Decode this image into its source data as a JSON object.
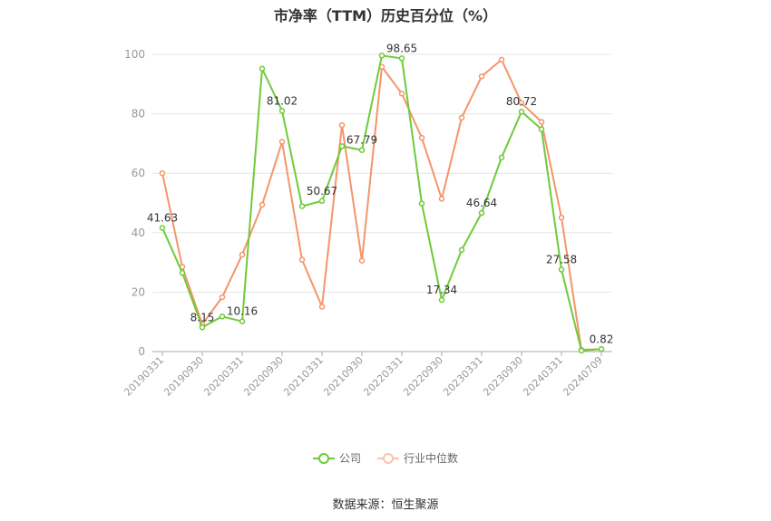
{
  "title": "市净率（TTM）历史百分位（%）",
  "source": "数据来源：恒生聚源",
  "colors": {
    "company": "#6ecb38",
    "industry": "#f4956a",
    "grid": "#e6e6e6",
    "axis": "#999999",
    "label": "#333333"
  },
  "chart_data": {
    "type": "line",
    "title": "市净率（TTM）历史百分位（%）",
    "xlabel": "",
    "ylabel": "",
    "ylim": [
      0,
      100
    ],
    "yticks": [
      0,
      20,
      40,
      60,
      80,
      100
    ],
    "grid": true,
    "legend_position": "bottom",
    "x_tick_labels": [
      "20190331",
      "20190930",
      "20200331",
      "20200930",
      "20210331",
      "20210930",
      "20220331",
      "20220930",
      "20230331",
      "20230930",
      "20240331",
      "20240709"
    ],
    "x": [
      "20190331",
      "20190630",
      "20190930",
      "20191231",
      "20200331",
      "20200630",
      "20200930",
      "20201231",
      "20210331",
      "20210630",
      "20210930",
      "20211231",
      "20220331",
      "20220630",
      "20220930",
      "20221231",
      "20230331",
      "20230630",
      "20230930",
      "20231231",
      "20240331",
      "20240630",
      "20240709"
    ],
    "series": [
      {
        "name": "公司",
        "values": [
          41.63,
          26.5,
          8.15,
          11.8,
          10.16,
          95.2,
          81.02,
          48.9,
          50.67,
          69.1,
          67.79,
          99.6,
          98.65,
          49.8,
          17.34,
          34.2,
          46.64,
          65.3,
          80.72,
          74.8,
          27.58,
          0.3,
          0.82
        ],
        "labels": {
          "0": "41.63",
          "2": "8.15",
          "4": "10.16",
          "6": "81.02",
          "8": "50.67",
          "10": "67.79",
          "12": "98.65",
          "14": "17.34",
          "16": "46.64",
          "18": "80.72",
          "20": "27.58",
          "22": "0.82"
        }
      },
      {
        "name": "行业中位数",
        "values": [
          60.0,
          28.5,
          9.2,
          18.3,
          32.6,
          49.4,
          70.6,
          30.9,
          15.1,
          76.2,
          30.6,
          95.8,
          86.8,
          71.9,
          51.4,
          78.7,
          92.6,
          98.2,
          83.6,
          77.3,
          45.1,
          0.6,
          0.8
        ]
      }
    ]
  }
}
